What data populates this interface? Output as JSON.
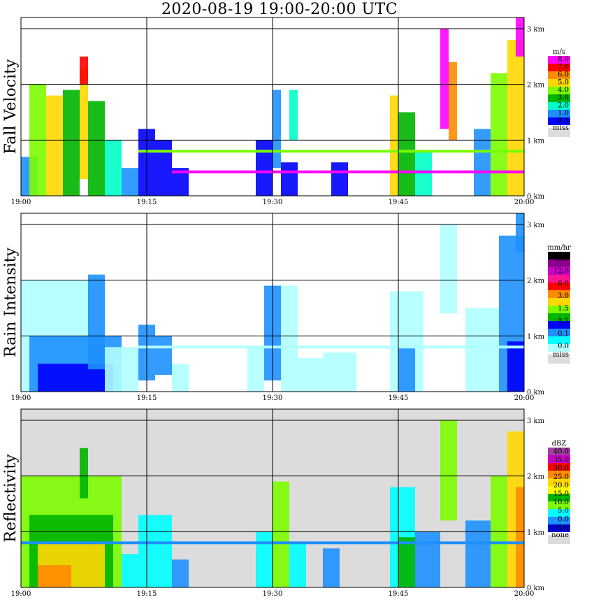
{
  "title": "2020-08-19   19:00-20:00 UTC",
  "chart_data": [
    {
      "type": "heatmap",
      "name": "fall-velocity",
      "ylabel": "Fall Velocity",
      "x_ticks": [
        "19:00",
        "19:15",
        "19:30",
        "19:45",
        "20:00"
      ],
      "y_ticks": [
        "0 km",
        "1 km",
        "2 km",
        "3 km"
      ],
      "xlim_minutes": [
        0,
        60
      ],
      "ylim_km": [
        0,
        3.2
      ],
      "colorbar": {
        "unit": "m/s",
        "labels": [
          "8.0",
          "7.0",
          "6.0",
          "5.0",
          "4.0",
          "3.0",
          "2.0",
          "1.0",
          "0.0"
        ],
        "colors": [
          "#ff00ff",
          "#ff0000",
          "#ff8c00",
          "#ffd700",
          "#7cfc00",
          "#00b400",
          "#00ffc8",
          "#1e90ff",
          "#0000ff"
        ],
        "missing_label": "miss",
        "missing_color": "#dcdcdc"
      },
      "background": "#ffffff",
      "cells": [
        {
          "t0": 0,
          "t1": 2,
          "h0": 0,
          "h1": 0.7,
          "v": 1.0
        },
        {
          "t0": 1,
          "t1": 3,
          "h0": 0,
          "h1": 2.0,
          "v": 4.0
        },
        {
          "t0": 3,
          "t1": 5,
          "h0": 0,
          "h1": 1.8,
          "v": 5.0
        },
        {
          "t0": 5,
          "t1": 7,
          "h0": 0,
          "h1": 1.9,
          "v": 3.5
        },
        {
          "t0": 7,
          "t1": 8,
          "h0": 0.3,
          "h1": 2.3,
          "v": 5.5
        },
        {
          "t0": 7,
          "t1": 8,
          "h0": 2.0,
          "h1": 2.5,
          "v": 7.5
        },
        {
          "t0": 8,
          "t1": 10,
          "h0": 0,
          "h1": 1.7,
          "v": 3.5
        },
        {
          "t0": 10,
          "t1": 12,
          "h0": 0,
          "h1": 1.0,
          "v": 2.5
        },
        {
          "t0": 12,
          "t1": 14,
          "h0": 0,
          "h1": 0.5,
          "v": 1.5
        },
        {
          "t0": 14,
          "t1": 16,
          "h0": 0,
          "h1": 1.2,
          "v": 0.5
        },
        {
          "t0": 16,
          "t1": 18,
          "h0": 0,
          "h1": 1.0,
          "v": 0.5
        },
        {
          "t0": 18,
          "t1": 20,
          "h0": 0,
          "h1": 0.5,
          "v": 0.5
        },
        {
          "t0": 28,
          "t1": 30,
          "h0": 0,
          "h1": 1.0,
          "v": 0.5
        },
        {
          "t0": 30,
          "t1": 31,
          "h0": 0.5,
          "h1": 1.9,
          "v": 1.0
        },
        {
          "t0": 31,
          "t1": 33,
          "h0": 0,
          "h1": 0.6,
          "v": 0.5
        },
        {
          "t0": 32,
          "t1": 33,
          "h0": 1.0,
          "h1": 1.9,
          "v": 2.0
        },
        {
          "t0": 37,
          "t1": 39,
          "h0": 0,
          "h1": 0.6,
          "v": 0.5
        },
        {
          "t0": 44,
          "t1": 45,
          "h0": 0,
          "h1": 1.8,
          "v": 5.0
        },
        {
          "t0": 45,
          "t1": 47,
          "h0": 0,
          "h1": 1.5,
          "v": 3.0
        },
        {
          "t0": 47,
          "t1": 49,
          "h0": 0,
          "h1": 0.8,
          "v": 2.0
        },
        {
          "t0": 50,
          "t1": 51,
          "h0": 1.2,
          "h1": 3.0,
          "v": 8.0
        },
        {
          "t0": 51,
          "t1": 52,
          "h0": 1.0,
          "h1": 2.4,
          "v": 6.5
        },
        {
          "t0": 54,
          "t1": 56,
          "h0": 0,
          "h1": 1.2,
          "v": 1.5
        },
        {
          "t0": 56,
          "t1": 58,
          "h0": 0,
          "h1": 2.2,
          "v": 4.0
        },
        {
          "t0": 58,
          "t1": 60,
          "h0": 0,
          "h1": 2.8,
          "v": 5.5
        },
        {
          "t0": 59,
          "t1": 60,
          "h0": 2.5,
          "h1": 3.2,
          "v": 8.0
        }
      ],
      "bands": [
        {
          "t0": 14,
          "t1": 60,
          "h": 0.8,
          "v": 4.0
        },
        {
          "t0": 18,
          "t1": 60,
          "h": 0.43,
          "v": 8.0
        }
      ]
    },
    {
      "type": "heatmap",
      "name": "rain-intensity",
      "ylabel": "Rain Intensity",
      "x_ticks": [
        "19:00",
        "19:15",
        "19:30",
        "19:45",
        "20:00"
      ],
      "y_ticks": [
        "0 km",
        "1 km",
        "2 km",
        "3 km"
      ],
      "xlim_minutes": [
        0,
        60
      ],
      "ylim_km": [
        0,
        3.2
      ],
      "colorbar": {
        "unit": "mm/hr",
        "labels": [
          "48.0",
          "12.0",
          "6.0",
          "3.0",
          "1.5",
          "0.5",
          "0.1",
          "0.0"
        ],
        "colors": [
          "#000000",
          "#8b008b",
          "#c800c8",
          "#ff1493",
          "#ff0000",
          "#ff8c00",
          "#ffd700",
          "#7cfc00",
          "#00b400",
          "#0000ff",
          "#1e90ff",
          "#00ffff",
          "#b0ffff"
        ],
        "missing_label": "miss",
        "missing_color": "#dcdcdc"
      },
      "background": "#ffffff",
      "cells": [
        {
          "t0": 0,
          "t1": 10,
          "h0": 0,
          "h1": 2.0,
          "v": 0.05
        },
        {
          "t0": 1,
          "t1": 12,
          "h0": 0,
          "h1": 1.0,
          "v": 0.3
        },
        {
          "t0": 2,
          "t1": 11,
          "h0": 0,
          "h1": 0.5,
          "v": 1.0
        },
        {
          "t0": 8,
          "t1": 10,
          "h0": 0.4,
          "h1": 2.1,
          "v": 0.3
        },
        {
          "t0": 10,
          "t1": 14,
          "h0": 0,
          "h1": 0.8,
          "v": 0.05
        },
        {
          "t0": 14,
          "t1": 16,
          "h0": 0.2,
          "h1": 1.2,
          "v": 0.3
        },
        {
          "t0": 16,
          "t1": 18,
          "h0": 0.3,
          "h1": 1.0,
          "v": 0.3
        },
        {
          "t0": 18,
          "t1": 20,
          "h0": 0,
          "h1": 0.5,
          "v": 0.05
        },
        {
          "t0": 27,
          "t1": 29,
          "h0": 0,
          "h1": 0.8,
          "v": 0.05
        },
        {
          "t0": 29,
          "t1": 31,
          "h0": 0.2,
          "h1": 1.9,
          "v": 0.3
        },
        {
          "t0": 31,
          "t1": 33,
          "h0": 0,
          "h1": 1.9,
          "v": 0.05
        },
        {
          "t0": 33,
          "t1": 36,
          "h0": 0,
          "h1": 0.6,
          "v": 0.05
        },
        {
          "t0": 36,
          "t1": 40,
          "h0": 0,
          "h1": 0.7,
          "v": 0.05
        },
        {
          "t0": 44,
          "t1": 48,
          "h0": 0,
          "h1": 1.8,
          "v": 0.05
        },
        {
          "t0": 45,
          "t1": 47,
          "h0": 0,
          "h1": 0.8,
          "v": 0.3
        },
        {
          "t0": 50,
          "t1": 52,
          "h0": 1.4,
          "h1": 3.0,
          "v": 0.05
        },
        {
          "t0": 53,
          "t1": 57,
          "h0": 0,
          "h1": 1.5,
          "v": 0.05
        },
        {
          "t0": 57,
          "t1": 60,
          "h0": 0,
          "h1": 2.8,
          "v": 0.3
        },
        {
          "t0": 58,
          "t1": 60,
          "h0": 0,
          "h1": 0.9,
          "v": 1.0
        },
        {
          "t0": 59,
          "t1": 60,
          "h0": 2.5,
          "h1": 3.2,
          "v": 0.3
        }
      ],
      "bands": [
        {
          "t0": 14,
          "t1": 60,
          "h": 0.8,
          "v": 0.05
        }
      ]
    },
    {
      "type": "heatmap",
      "name": "reflectivity",
      "ylabel": "Reflectivity",
      "x_ticks": [
        "19:00",
        "19:15",
        "19:30",
        "19:45",
        "20:00"
      ],
      "y_ticks": [
        "0 km",
        "1 km",
        "2 km",
        "3 km"
      ],
      "xlim_minutes": [
        0,
        60
      ],
      "ylim_km": [
        0,
        3.2
      ],
      "colorbar": {
        "unit": "dBZ",
        "labels": [
          "40.0",
          "35.0",
          "30.0",
          "25.0",
          "20.0",
          "15.0",
          "10.0",
          "5.0",
          "0.0",
          "-5.0"
        ],
        "colors": [
          "#a040a0",
          "#c800c8",
          "#ff0000",
          "#ff8c00",
          "#ffd700",
          "#ffff00",
          "#00b400",
          "#7cfc00",
          "#00ffff",
          "#1e90ff",
          "#0000cc"
        ],
        "missing_label": "none",
        "missing_color": "#dcdcdc"
      },
      "background": "#dcdcdc",
      "cells": [
        {
          "t0": 0,
          "t1": 12,
          "h0": 0,
          "h1": 2.0,
          "v": 10.0
        },
        {
          "t0": 1,
          "t1": 11,
          "h0": 0,
          "h1": 1.3,
          "v": 17.0
        },
        {
          "t0": 2,
          "t1": 10,
          "h0": 0,
          "h1": 0.8,
          "v": 22.0
        },
        {
          "t0": 2,
          "t1": 6,
          "h0": 0,
          "h1": 0.4,
          "v": 27.0
        },
        {
          "t0": 7,
          "t1": 8,
          "h0": 1.6,
          "h1": 2.5,
          "v": 15.0
        },
        {
          "t0": 12,
          "t1": 14,
          "h0": 0,
          "h1": 0.6,
          "v": 6.0
        },
        {
          "t0": 14,
          "t1": 18,
          "h0": 0,
          "h1": 1.3,
          "v": 6.0
        },
        {
          "t0": 18,
          "t1": 20,
          "h0": 0,
          "h1": 0.5,
          "v": 2.0
        },
        {
          "t0": 28,
          "t1": 30,
          "h0": 0,
          "h1": 1.0,
          "v": 6.0
        },
        {
          "t0": 30,
          "t1": 32,
          "h0": 0,
          "h1": 1.9,
          "v": 12.0
        },
        {
          "t0": 32,
          "t1": 34,
          "h0": 0,
          "h1": 0.8,
          "v": 6.0
        },
        {
          "t0": 36,
          "t1": 38,
          "h0": 0,
          "h1": 0.7,
          "v": 2.0
        },
        {
          "t0": 44,
          "t1": 47,
          "h0": 0,
          "h1": 1.8,
          "v": 8.0
        },
        {
          "t0": 45,
          "t1": 47,
          "h0": 0,
          "h1": 0.9,
          "v": 18.0
        },
        {
          "t0": 47,
          "t1": 50,
          "h0": 0,
          "h1": 1.0,
          "v": 2.0
        },
        {
          "t0": 50,
          "t1": 52,
          "h0": 1.2,
          "h1": 3.0,
          "v": 12.0
        },
        {
          "t0": 53,
          "t1": 56,
          "h0": 0,
          "h1": 1.2,
          "v": 4.0
        },
        {
          "t0": 56,
          "t1": 58,
          "h0": 0,
          "h1": 2.0,
          "v": 12.0
        },
        {
          "t0": 58,
          "t1": 60,
          "h0": 0,
          "h1": 2.8,
          "v": 22.0
        },
        {
          "t0": 59,
          "t1": 60,
          "h0": 0,
          "h1": 1.8,
          "v": 27.0
        }
      ],
      "bands": [
        {
          "t0": 0,
          "t1": 60,
          "h": 0.8,
          "v": 0.0
        }
      ]
    }
  ]
}
